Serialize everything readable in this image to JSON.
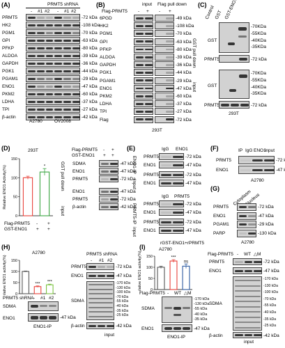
{
  "panels": {
    "A": {
      "letter": "(A)",
      "header": "PRMT5 shRNA",
      "lanes": [
        "-",
        "#1",
        "#2",
        "-",
        "#1",
        "#2"
      ],
      "rows": [
        {
          "name": "PRMT5",
          "mw": "-72 kDa"
        },
        {
          "name": "HK2",
          "mw": "-108 kDa"
        },
        {
          "name": "PGM1",
          "mw": "-70 kDa"
        },
        {
          "name": "GPI",
          "mw": "-63 kDa"
        },
        {
          "name": "PFKP",
          "mw": "-80 kDa"
        },
        {
          "name": "ALDOA",
          "mw": "-39 kDa"
        },
        {
          "name": "GAPDH",
          "mw": "-36 kDa"
        },
        {
          "name": "PGK1",
          "mw": "-44 kDa"
        },
        {
          "name": "PGAM1",
          "mw": "-29 kDa"
        },
        {
          "name": "ENO1",
          "mw": "-47 kDa"
        },
        {
          "name": "PKM2",
          "mw": "-60 kDa"
        },
        {
          "name": "LDHA",
          "mw": "-37 kDa"
        },
        {
          "name": "TPI",
          "mw": "-27 kDa"
        },
        {
          "name": "β-actin",
          "mw": "-42 kDa"
        }
      ],
      "cells": [
        "A2780",
        "OV2008"
      ]
    },
    "B": {
      "letter": "(B)",
      "col_input": "input",
      "col_pull": "Flag pull down",
      "flag_label": "Flag-PRMT5",
      "lanes": [
        "-",
        "+",
        "-",
        "+"
      ],
      "rows": [
        {
          "name": "6PGD",
          "mw": "-49 kDa"
        },
        {
          "name": "HK2",
          "mw": "-108 kDa"
        },
        {
          "name": "PGM1",
          "mw": "-70 kDa"
        },
        {
          "name": "GPI",
          "mw": "-63 kDa"
        },
        {
          "name": "PFKP",
          "mw": "-80 kDa"
        },
        {
          "name": "ALDOA",
          "mw": "-39 kDa"
        },
        {
          "name": "GAPDH",
          "mw": "-36 kDa"
        },
        {
          "name": "PGK1",
          "mw": "-44 kDa"
        },
        {
          "name": "PGAM1",
          "mw": "-29 kDa"
        },
        {
          "name": "ENO1",
          "mw": "-47 kDa"
        },
        {
          "name": "PKM2",
          "mw": "-60 kDa"
        },
        {
          "name": "LDHA",
          "mw": "-37 kDa"
        },
        {
          "name": "TPI",
          "mw": "-27 kDa"
        },
        {
          "name": "Flag",
          "mw": "-72 kDa"
        }
      ],
      "cell": "293T"
    },
    "C": {
      "letter": "(C)",
      "cols": [
        "Control",
        "GST",
        "GST-ENO1"
      ],
      "side_pull": "GST pull down",
      "side_input": "input",
      "row_gst": "GST",
      "row_prmt5": "PRMT5",
      "mw_gst": [
        "-70KDa",
        "-55KDa",
        "-40KDa",
        "-35KDa"
      ],
      "mw_prmt5": "-72 kDa",
      "cell": "293T"
    },
    "D": {
      "letter": "(D)",
      "cell": "293T",
      "flag_label": "Flag-PRMT5",
      "gst_label": "GST-ENO1",
      "signs_flag": [
        "-",
        "+"
      ],
      "signs_gst": [
        "+",
        "+"
      ],
      "pull_side": "GST pull down",
      "input_side": "input",
      "rows_pull": [
        {
          "name": "SDMA",
          "mw": "-47 kDa"
        },
        {
          "name": "ENO1",
          "mw": "-47 kDa"
        },
        {
          "name": "PRMT5",
          "mw": "-72 kDa"
        }
      ],
      "rows_input": [
        {
          "name": "ENO1",
          "mw": "-47 kDa"
        },
        {
          "name": "PRMT5",
          "mw": "-72 kDa"
        },
        {
          "name": "β-actin",
          "mw": "-42 kDa"
        }
      ],
      "star": "*"
    },
    "E": {
      "letter": "(E)",
      "ip1": "ENO1-IP",
      "ip2": "PRMT5-IP",
      "input": "input",
      "cols1": [
        "IgG",
        "ENO1"
      ],
      "cols2": [
        "IgG",
        "PRMT5"
      ],
      "rows1": [
        {
          "name": "PRMT5",
          "mw": "-72 kDa"
        },
        {
          "name": "ENO1",
          "mw": "-47 kDa"
        },
        {
          "name": "PRMT5",
          "mw": "-72 kDa"
        },
        {
          "name": "ENO1",
          "mw": "-47 kDa"
        }
      ],
      "rows2": [
        {
          "name": "PRMT5",
          "mw": "-72 kDa"
        },
        {
          "name": "ENO1",
          "mw": "-47 kDa"
        },
        {
          "name": "PRMT5",
          "mw": "-72 kDa"
        },
        {
          "name": "ENO1",
          "mw": "-47 kDa"
        }
      ],
      "footer": "rGST-ENO1+rPRMT5"
    },
    "F": {
      "letter": "(F)",
      "cols": [
        "IP",
        "IgG",
        "ENO1",
        "input"
      ],
      "rows": [
        {
          "name": "PRMT5",
          "mw": "-72 kDa"
        },
        {
          "name": "ENO1",
          "mw": "-47 kDa"
        }
      ],
      "cell": "A2780"
    },
    "G": {
      "letter": "(G)",
      "cols": [
        "Cytoplasm",
        "Nucleus"
      ],
      "rows": [
        {
          "name": "PRMT5",
          "mw": "-72 kDa"
        },
        {
          "name": "ENO1",
          "mw": "-47 kDa"
        },
        {
          "name": "PGAM1",
          "mw": "-29 kDa"
        },
        {
          "name": "PARP",
          "mw": "-130 kDa"
        }
      ],
      "cell": "A2780"
    },
    "H": {
      "letter": "(H)",
      "cell": "A2780",
      "shrna_label": "PRMT5 shRNA",
      "signs": [
        "-",
        "#1",
        "#2"
      ],
      "blot_rows": [
        {
          "name": "SDMA"
        },
        {
          "name": "ENO1",
          "mw": "-47 kDa"
        }
      ],
      "ip_label": "ENO1-IP",
      "input_header": "PRMT5 shRNA",
      "input_lanes": [
        "-",
        "#1",
        "#2"
      ],
      "input_rows": [
        {
          "name": "PRMT5",
          "mw": "-72 kDa"
        },
        {
          "name": "ENO1",
          "mw": "-47 kDa"
        },
        {
          "name": "SDMA"
        },
        {
          "name": "β-actin",
          "mw": "-42 kDa"
        }
      ],
      "input_mw": [
        "-170 kDa",
        "-130 kDa",
        "-100 kDa",
        "-70 kDa",
        "-55 kDa",
        "-40 kDa",
        "-35 kDa",
        "-25 kDa"
      ],
      "input_label": "input",
      "stars": [
        "***",
        "***"
      ]
    },
    "I": {
      "letter": "(I)",
      "cell": "A2780",
      "flag_label": "Flag-PRMT5",
      "signs": [
        "-",
        "WT",
        "△M"
      ],
      "stars": [
        "***",
        "ns"
      ],
      "blot_rows": [
        {
          "name": "SDMA"
        },
        {
          "name": "ENO1",
          "mw": "-47 kDa"
        }
      ],
      "blot_mw": [
        "-170 kDa",
        "-130 kDa",
        "-55 kDa",
        "-40 kDa",
        "-35 kDa"
      ],
      "ip_label": "ENO1-IP",
      "input_flag": "Flag-PRMT5",
      "input_signs": [
        "-",
        "WT",
        "△M"
      ],
      "input_rows": [
        {
          "name": "PRMT5",
          "mw": "-72 kDa"
        },
        {
          "name": "ENO1",
          "mw": "-47 kDa"
        },
        {
          "name": "SDMA"
        },
        {
          "name": "β-actin",
          "mw": "-42 kDa"
        }
      ],
      "input_mw": [
        "-170 kDa",
        "-130 kDa",
        "-100 kDa",
        "-70 kDa",
        "-55 kDa",
        "-40 kDa",
        "-35 kDa",
        "-25 kDa"
      ],
      "input_label": "input"
    }
  },
  "chart_data": [
    {
      "type": "bar",
      "panel": "D",
      "ylabel": "Relative ENO1 Activity(%)",
      "categories": [
        "Flag-PRMT5 -",
        "Flag-PRMT5 +"
      ],
      "values": [
        100,
        115
      ],
      "errors": [
        4,
        9
      ],
      "ylim": [
        0,
        150
      ],
      "yticks": [
        0,
        50,
        100,
        150
      ],
      "colors": [
        "#e8413a",
        "#3aa641"
      ],
      "annotations": [
        "",
        "*"
      ]
    },
    {
      "type": "bar",
      "panel": "H",
      "ylabel": "Relative ENO1 activity(%)",
      "categories": [
        "-",
        "#1",
        "#2"
      ],
      "values": [
        100,
        32,
        40
      ],
      "errors": [
        2,
        3,
        3
      ],
      "ylim": [
        0,
        150
      ],
      "yticks": [
        0,
        50,
        100,
        150
      ],
      "colors": [
        "#555555",
        "#e8413a",
        "#7dc242"
      ],
      "annotations": [
        "",
        "***",
        "***"
      ]
    },
    {
      "type": "bar",
      "panel": "I",
      "ylabel": "Relative ENO1 activity(%)",
      "categories": [
        "-",
        "WT",
        "△M"
      ],
      "values": [
        100,
        128,
        105
      ],
      "errors": [
        5,
        6,
        10
      ],
      "ylim": [
        0,
        150
      ],
      "yticks": [
        0,
        50,
        100,
        150
      ],
      "colors": [
        "#555555",
        "#e8413a",
        "#2c5aa0"
      ],
      "annotations": [
        "",
        "***",
        "ns"
      ]
    }
  ]
}
